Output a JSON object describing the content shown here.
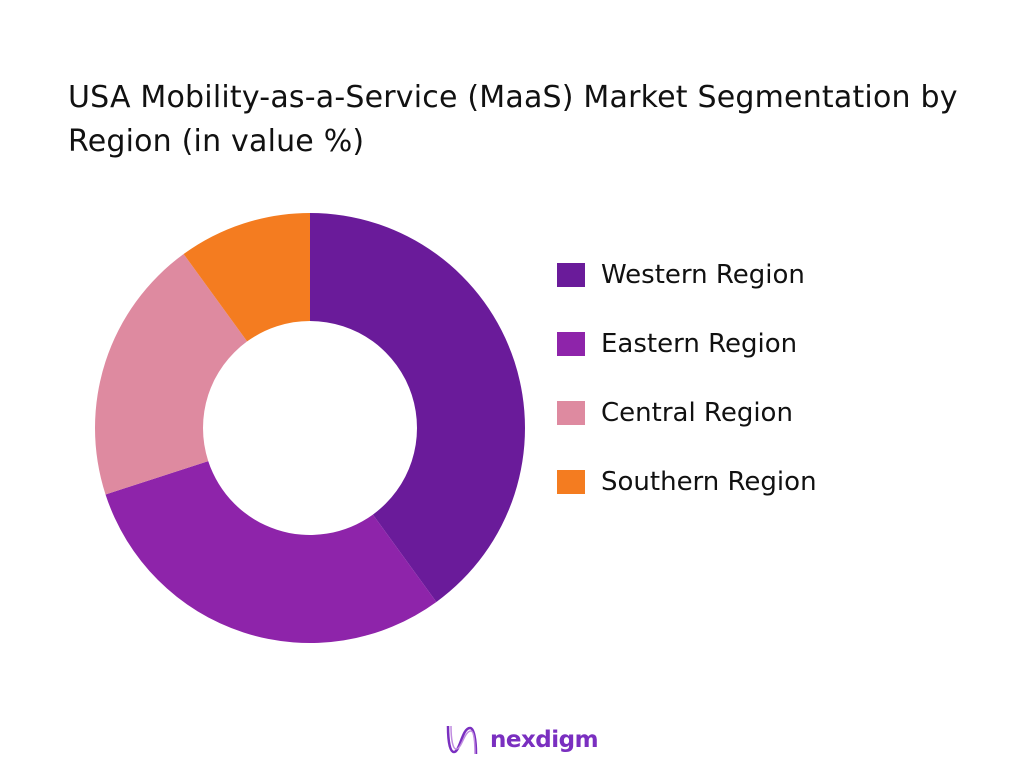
{
  "chart_data": {
    "type": "pie",
    "donut": true,
    "title": "USA Mobility-as-a-Service (MaaS) Market Segmentation by Region (in value %)",
    "categories": [
      "Western Region",
      "Eastern Region",
      "Central Region",
      "Southern Region"
    ],
    "values": [
      40,
      30,
      20,
      10
    ],
    "colors": [
      "#6a1b9a",
      "#8e24aa",
      "#de8aa0",
      "#f47c20"
    ],
    "legend_position": "right"
  },
  "brand": {
    "name": "nexdigm",
    "color": "#7a2fc0"
  }
}
